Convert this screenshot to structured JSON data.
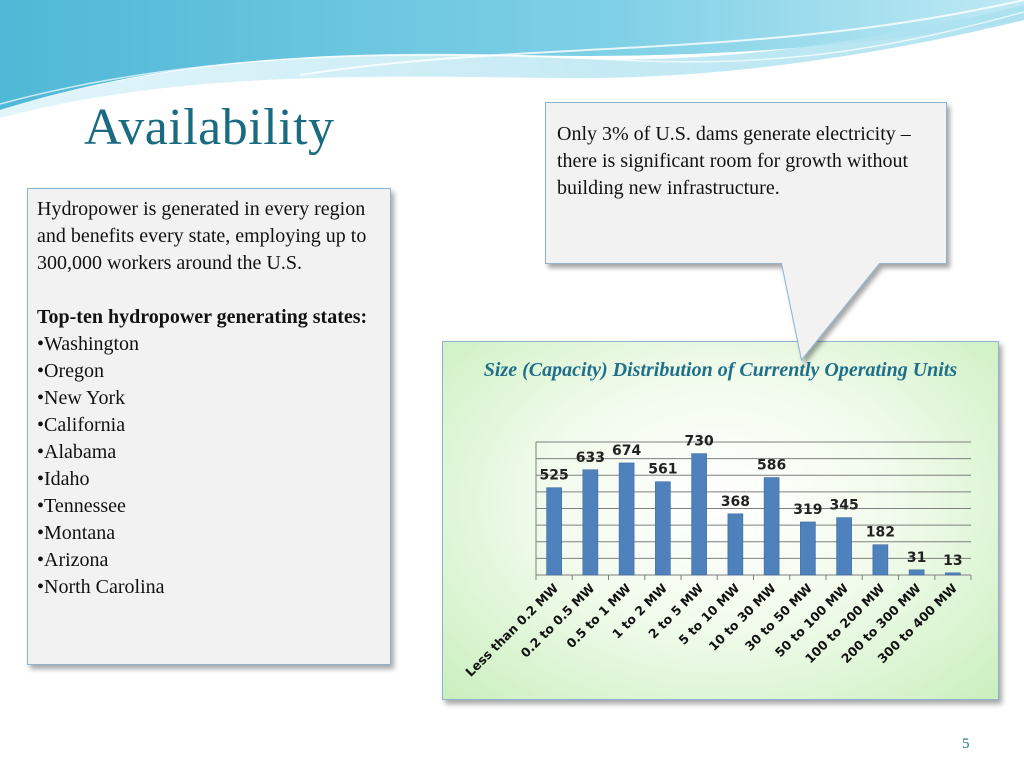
{
  "slide": {
    "title": "Availability",
    "page_number": "5"
  },
  "left_box": {
    "paragraph": "Hydropower is generated in every region and benefits every state, employing up to 300,000 workers around the U.S.",
    "heading": "Top-ten hydropower generating states:",
    "states": [
      "•Washington",
      "•Oregon",
      "•New York",
      "•California",
      "•Alabama",
      "•Idaho",
      "•Tennessee",
      "•Montana",
      "•Arizona",
      "•North Carolina"
    ]
  },
  "callout": {
    "text": "Only 3% of U.S. dams generate electricity – there is significant room for growth without building new infrastructure."
  },
  "chart_data": {
    "type": "bar",
    "title": "Size (Capacity) Distribution of Currently Operating Units",
    "categories": [
      "Less than 0.2 MW",
      "0.2 to 0.5 MW",
      "0.5 to 1 MW",
      "1 to 2 MW",
      "2 to 5 MW",
      "5 to 10 MW",
      "10 to 30 MW",
      "30 to 50 MW",
      "50 to 100 MW",
      "100 to 200 MW",
      "200 to 300 MW",
      "300 to 400 MW"
    ],
    "values": [
      525,
      633,
      674,
      561,
      730,
      368,
      586,
      319,
      345,
      182,
      31,
      13
    ],
    "ylim": [
      0,
      800
    ],
    "grid": true,
    "legend": "none",
    "bar_color": "#4f81bd"
  }
}
